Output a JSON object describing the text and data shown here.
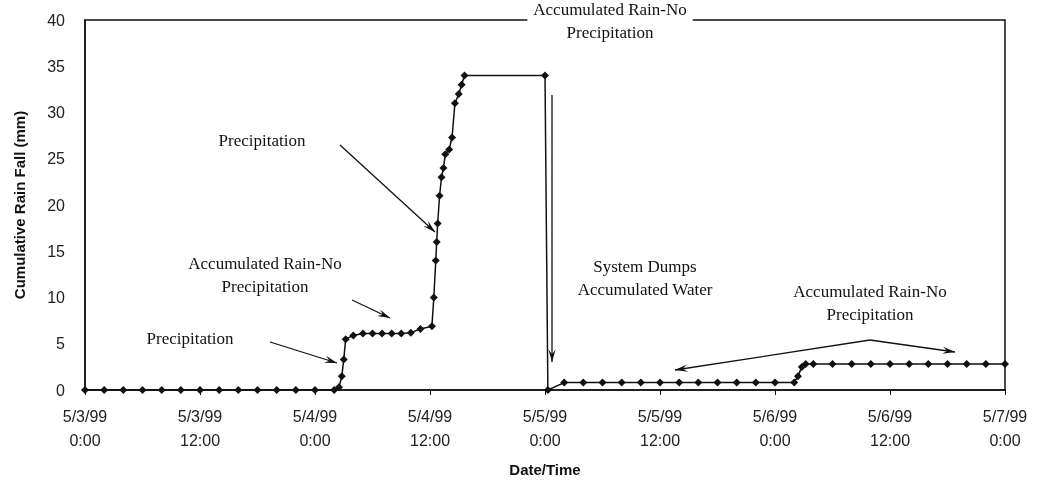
{
  "chart_data": {
    "type": "line",
    "xlabel": "Date/Time",
    "ylabel": "Cumulative Rain Fall (mm)",
    "xlim": [
      "1999-05-03T00:00",
      "1999-05-07T00:00"
    ],
    "ylim": [
      0,
      40
    ],
    "xticks": [
      {
        "value": "1999-05-03T00:00",
        "label": "5/3/99\n0:00"
      },
      {
        "value": "1999-05-03T12:00",
        "label": "5/3/99\n12:00"
      },
      {
        "value": "1999-05-04T00:00",
        "label": "5/4/99\n0:00"
      },
      {
        "value": "1999-05-04T12:00",
        "label": "5/4/99\n12:00"
      },
      {
        "value": "1999-05-05T00:00",
        "label": "5/5/99\n0:00"
      },
      {
        "value": "1999-05-05T12:00",
        "label": "5/5/99\n12:00"
      },
      {
        "value": "1999-05-06T00:00",
        "label": "5/6/99\n0:00"
      },
      {
        "value": "1999-05-06T12:00",
        "label": "5/6/99\n12:00"
      },
      {
        "value": "1999-05-07T00:00",
        "label": "5/7/99\n0:00"
      }
    ],
    "yticks": [
      0,
      5,
      10,
      15,
      20,
      25,
      30,
      35,
      40
    ],
    "grid": false,
    "marker": "diamond",
    "line_style": "solid",
    "series": [
      {
        "color": "#111111",
        "x": [
          "1999-05-03T00:00",
          "1999-05-03T02:00",
          "1999-05-03T04:00",
          "1999-05-03T06:00",
          "1999-05-03T08:00",
          "1999-05-03T10:00",
          "1999-05-03T12:00",
          "1999-05-03T14:00",
          "1999-05-03T16:00",
          "1999-05-03T18:00",
          "1999-05-03T20:00",
          "1999-05-03T22:00",
          "1999-05-04T00:00",
          "1999-05-04T02:00",
          "1999-05-04T02:30",
          "1999-05-04T02:48",
          "1999-05-04T03:00",
          "1999-05-04T03:12",
          "1999-05-04T04:00",
          "1999-05-04T05:00",
          "1999-05-04T06:00",
          "1999-05-04T07:00",
          "1999-05-04T08:00",
          "1999-05-04T09:00",
          "1999-05-04T10:00",
          "1999-05-04T11:00",
          "1999-05-04T12:12",
          "1999-05-04T12:24",
          "1999-05-04T12:36",
          "1999-05-04T12:42",
          "1999-05-04T12:48",
          "1999-05-04T13:00",
          "1999-05-04T13:12",
          "1999-05-04T13:24",
          "1999-05-04T13:36",
          "1999-05-04T14:00",
          "1999-05-04T14:18",
          "1999-05-04T14:36",
          "1999-05-04T15:00",
          "1999-05-04T15:18",
          "1999-05-04T15:36",
          "1999-05-05T00:00",
          "1999-05-05T00:18",
          "1999-05-05T02:00",
          "1999-05-05T04:00",
          "1999-05-05T06:00",
          "1999-05-05T08:00",
          "1999-05-05T10:00",
          "1999-05-05T12:00",
          "1999-05-05T14:00",
          "1999-05-05T16:00",
          "1999-05-05T18:00",
          "1999-05-05T20:00",
          "1999-05-05T22:00",
          "1999-05-06T00:00",
          "1999-05-06T02:00",
          "1999-05-06T02:24",
          "1999-05-06T02:48",
          "1999-05-06T03:12",
          "1999-05-06T04:00",
          "1999-05-06T06:00",
          "1999-05-06T08:00",
          "1999-05-06T10:00",
          "1999-05-06T12:00",
          "1999-05-06T14:00",
          "1999-05-06T16:00",
          "1999-05-06T18:00",
          "1999-05-06T20:00",
          "1999-05-06T22:00",
          "1999-05-07T00:00"
        ],
        "values": [
          0,
          0,
          0,
          0,
          0,
          0,
          0,
          0,
          0,
          0,
          0,
          0,
          0,
          0,
          0.3,
          1.5,
          3.3,
          5.5,
          5.9,
          6.1,
          6.1,
          6.1,
          6.1,
          6.1,
          6.2,
          6.6,
          6.9,
          10,
          14,
          16,
          18,
          21,
          23,
          24,
          25.5,
          26,
          27.3,
          31,
          32,
          33,
          34,
          34,
          0,
          0.8,
          0.8,
          0.8,
          0.8,
          0.8,
          0.8,
          0.8,
          0.8,
          0.8,
          0.8,
          0.8,
          0.8,
          0.8,
          1.5,
          2.5,
          2.8,
          2.8,
          2.8,
          2.8,
          2.8,
          2.8,
          2.8,
          2.8,
          2.8,
          2.8,
          2.8,
          2.8
        ]
      }
    ],
    "annotations": [
      "Precipitation",
      "Accumulated Rain-No\nPrecipitation",
      "Precipitation",
      "Accumulated Rain-No\nPrecipitation",
      "System Dumps\nAccumulated Water",
      "Accumulated Rain-No\nPrecipitation"
    ]
  }
}
